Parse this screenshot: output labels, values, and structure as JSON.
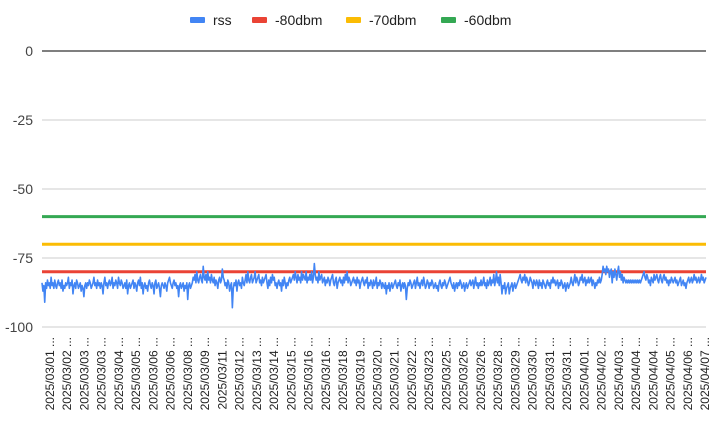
{
  "chart_data": {
    "type": "line",
    "title": "",
    "xlabel": "",
    "ylabel": "",
    "ylim": [
      -100,
      0
    ],
    "y_ticks": [
      "0",
      "-25",
      "-50",
      "-75",
      "-100"
    ],
    "y_tick_values": [
      0,
      -25,
      -50,
      -75,
      -100
    ],
    "grid": true,
    "legend_position": "top",
    "x_tick_labels": [
      "2025/03/01 ...",
      "2025/03/02 ...",
      "2025/03/03 ...",
      "2025/03/03 ...",
      "2025/03/04 ...",
      "2025/03/05 ...",
      "2025/03/06 ...",
      "2025/03/06 ...",
      "2025/03/08 ...",
      "2025/03/09 ...",
      "2025/03/11 ...",
      "2025/03/12 ...",
      "2025/03/13 ...",
      "2025/03/14 ...",
      "2025/03/15 ...",
      "2025/03/16 ...",
      "2025/03/16 ...",
      "2025/03/18 ...",
      "2025/03/19 ...",
      "2025/03/20 ...",
      "2025/03/21 ...",
      "2025/03/22 ...",
      "2025/03/23 ...",
      "2025/03/25 ...",
      "2025/03/26 ...",
      "2025/03/26 ...",
      "2025/03/28 ...",
      "2025/03/29 ...",
      "2025/03/30 ...",
      "2025/03/31 ...",
      "2025/03/31 ...",
      "2025/04/01 ...",
      "2025/04/02 ...",
      "2025/04/03 ...",
      "2025/04/04 ...",
      "2025/04/04 ...",
      "2025/04/05 ...",
      "2025/04/06 ...",
      "2025/04/07 ..."
    ],
    "series": [
      {
        "name": "rss",
        "color": "#4285f4",
        "values": [
          -84,
          -87,
          -85,
          -91,
          -84,
          -86,
          -83,
          -85,
          -84,
          -86,
          -82,
          -85,
          -84,
          -86,
          -83,
          -85,
          -86,
          -84,
          -83,
          -85,
          -84,
          -86,
          -83,
          -87,
          -85,
          -86,
          -84,
          -85,
          -84,
          -82,
          -86,
          -84,
          -85,
          -83,
          -88,
          -85,
          -84,
          -86,
          -83,
          -84,
          -86,
          -85,
          -84,
          -87,
          -85,
          -86,
          -89,
          -85,
          -84,
          -86,
          -84,
          -85,
          -83,
          -84,
          -86,
          -85,
          -84,
          -82,
          -85,
          -84,
          -86,
          -83,
          -85,
          -84,
          -86,
          -84,
          -85,
          -88,
          -84,
          -82,
          -85,
          -84,
          -86,
          -84,
          -83,
          -85,
          -84,
          -82,
          -86,
          -84,
          -85,
          -83,
          -84,
          -86,
          -82,
          -84,
          -85,
          -83,
          -84,
          -86,
          -85,
          -84,
          -86,
          -83,
          -88,
          -85,
          -84,
          -86,
          -85,
          -84,
          -83,
          -86,
          -84,
          -85,
          -87,
          -84,
          -83,
          -85,
          -82,
          -86,
          -84,
          -88,
          -85,
          -84,
          -86,
          -85,
          -87,
          -84,
          -83,
          -85,
          -86,
          -84,
          -85,
          -88,
          -84,
          -83,
          -86,
          -85,
          -84,
          -86,
          -89,
          -85,
          -84,
          -85,
          -86,
          -84,
          -85,
          -87,
          -84,
          -83,
          -82,
          -84,
          -85,
          -86,
          -84,
          -83,
          -85,
          -84,
          -86,
          -85,
          -89,
          -85,
          -84,
          -86,
          -85,
          -84,
          -87,
          -85,
          -86,
          -84,
          -90,
          -85,
          -84,
          -86,
          -85,
          -84,
          -82,
          -83,
          -81,
          -84,
          -80,
          -83,
          -84,
          -82,
          -81,
          -83,
          -84,
          -78,
          -82,
          -83,
          -81,
          -84,
          -80,
          -83,
          -82,
          -84,
          -81,
          -83,
          -84,
          -82,
          -85,
          -83,
          -84,
          -86,
          -83,
          -82,
          -84,
          -83,
          -79,
          -82,
          -83,
          -85,
          -84,
          -86,
          -83,
          -84,
          -87,
          -85,
          -84,
          -93,
          -86,
          -84,
          -85,
          -83,
          -87,
          -84,
          -83,
          -85,
          -84,
          -86,
          -82,
          -84,
          -85,
          -83,
          -81,
          -84,
          -80,
          -83,
          -84,
          -82,
          -81,
          -84,
          -83,
          -82,
          -80,
          -84,
          -83,
          -82,
          -81,
          -84,
          -83,
          -85,
          -82,
          -84,
          -83,
          -82,
          -81,
          -84,
          -86,
          -83,
          -85,
          -82,
          -84,
          -81,
          -83,
          -82,
          -85,
          -84,
          -86,
          -84,
          -83,
          -85,
          -84,
          -87,
          -83,
          -85,
          -82,
          -84,
          -86,
          -84,
          -85,
          -83,
          -82,
          -84,
          -83,
          -82,
          -81,
          -83,
          -80,
          -82,
          -84,
          -81,
          -83,
          -82,
          -84,
          -80,
          -83,
          -81,
          -82,
          -83,
          -80,
          -84,
          -82,
          -83,
          -81,
          -83,
          -80,
          -84,
          -82,
          -77,
          -81,
          -83,
          -82,
          -84,
          -80,
          -83,
          -82,
          -81,
          -84,
          -83,
          -82,
          -85,
          -83,
          -84,
          -82,
          -83,
          -85,
          -83,
          -82,
          -81,
          -84,
          -85,
          -83,
          -82,
          -86,
          -84,
          -83,
          -82,
          -84,
          -83,
          -85,
          -82,
          -84,
          -81,
          -83,
          -80,
          -84,
          -82,
          -83,
          -85,
          -84,
          -83,
          -82,
          -84,
          -83,
          -85,
          -82,
          -84,
          -83,
          -86,
          -84,
          -83,
          -82,
          -84,
          -85,
          -83,
          -84,
          -82,
          -86,
          -84,
          -85,
          -83,
          -84,
          -86,
          -83,
          -85,
          -84,
          -82,
          -86,
          -84,
          -85,
          -83,
          -84,
          -86,
          -84,
          -85,
          -86,
          -84,
          -88,
          -85,
          -86,
          -84,
          -87,
          -85,
          -84,
          -86,
          -85,
          -84,
          -83,
          -85,
          -86,
          -84,
          -85,
          -83,
          -87,
          -85,
          -84,
          -86,
          -84,
          -85,
          -90,
          -86,
          -84,
          -85,
          -83,
          -84,
          -86,
          -85,
          -84,
          -83,
          -86,
          -84,
          -82,
          -85,
          -84,
          -86,
          -84,
          -83,
          -85,
          -82,
          -84,
          -86,
          -85,
          -83,
          -84,
          -86,
          -84,
          -85,
          -83,
          -84,
          -86,
          -85,
          -84,
          -86,
          -85,
          -87,
          -84,
          -83,
          -85,
          -86,
          -84,
          -85,
          -83,
          -84,
          -86,
          -85,
          -84,
          -83,
          -82,
          -84,
          -85,
          -86,
          -84,
          -87,
          -85,
          -84,
          -86,
          -84,
          -85,
          -83,
          -84,
          -86,
          -85,
          -84,
          -87,
          -85,
          -84,
          -86,
          -85,
          -84,
          -83,
          -85,
          -84,
          -83,
          -86,
          -84,
          -82,
          -85,
          -84,
          -86,
          -84,
          -85,
          -83,
          -85,
          -84,
          -82,
          -85,
          -84,
          -86,
          -83,
          -85,
          -84,
          -82,
          -85,
          -83,
          -84,
          -81,
          -85,
          -83,
          -80,
          -84,
          -82,
          -85,
          -81,
          -84,
          -88,
          -85,
          -86,
          -84,
          -88,
          -86,
          -85,
          -84,
          -88,
          -86,
          -85,
          -84,
          -87,
          -85,
          -84,
          -86,
          -85,
          -84,
          -83,
          -82,
          -81,
          -83,
          -84,
          -82,
          -83,
          -81,
          -84,
          -82,
          -83,
          -85,
          -84,
          -82,
          -83,
          -84,
          -86,
          -83,
          -84,
          -85,
          -83,
          -84,
          -86,
          -83,
          -85,
          -84,
          -86,
          -83,
          -84,
          -85,
          -86,
          -84,
          -83,
          -85,
          -84,
          -86,
          -83,
          -84,
          -82,
          -84,
          -83,
          -85,
          -84,
          -83,
          -86,
          -84,
          -85,
          -83,
          -84,
          -86,
          -85,
          -84,
          -87,
          -85,
          -84,
          -86,
          -85,
          -84,
          -82,
          -84,
          -85,
          -83,
          -81,
          -84,
          -82,
          -83,
          -85,
          -84,
          -82,
          -83,
          -81,
          -84,
          -83,
          -82,
          -85,
          -83,
          -84,
          -82,
          -84,
          -83,
          -82,
          -85,
          -83,
          -84,
          -86,
          -84,
          -85,
          -83,
          -84,
          -82,
          -84,
          -83,
          -81,
          -78,
          -80,
          -79,
          -81,
          -78,
          -80,
          -79,
          -82,
          -80,
          -79,
          -84,
          -80,
          -82,
          -79,
          -81,
          -83,
          -80,
          -78,
          -82,
          -80,
          -83,
          -81,
          -84,
          -82,
          -83,
          -84,
          -83,
          -84,
          -83,
          -84,
          -83,
          -84,
          -83,
          -84,
          -83,
          -84,
          -83,
          -84,
          -83,
          -84,
          -83,
          -84,
          -83,
          -82,
          -81,
          -80,
          -82,
          -83,
          -81,
          -82,
          -84,
          -83,
          -85,
          -82,
          -83,
          -84,
          -81,
          -83,
          -82,
          -81,
          -83,
          -84,
          -82,
          -81,
          -83,
          -84,
          -82,
          -81,
          -83,
          -82,
          -84,
          -83,
          -85,
          -83,
          -84,
          -82,
          -83,
          -84,
          -83,
          -82,
          -84,
          -83,
          -85,
          -84,
          -83,
          -82,
          -85,
          -84,
          -83,
          -85,
          -84,
          -86,
          -84,
          -83,
          -82,
          -84,
          -83,
          -82,
          -84,
          -83,
          -81,
          -83,
          -82,
          -84,
          -83,
          -82,
          -84,
          -83,
          -81,
          -83,
          -82,
          -84,
          -83,
          -82
        ]
      },
      {
        "name": "-80dbm",
        "color": "#ea4335",
        "constant": -80
      },
      {
        "name": "-70dbm",
        "color": "#fbbc04",
        "constant": -70
      },
      {
        "name": "-60dbm",
        "color": "#34a853",
        "constant": -60
      }
    ]
  }
}
